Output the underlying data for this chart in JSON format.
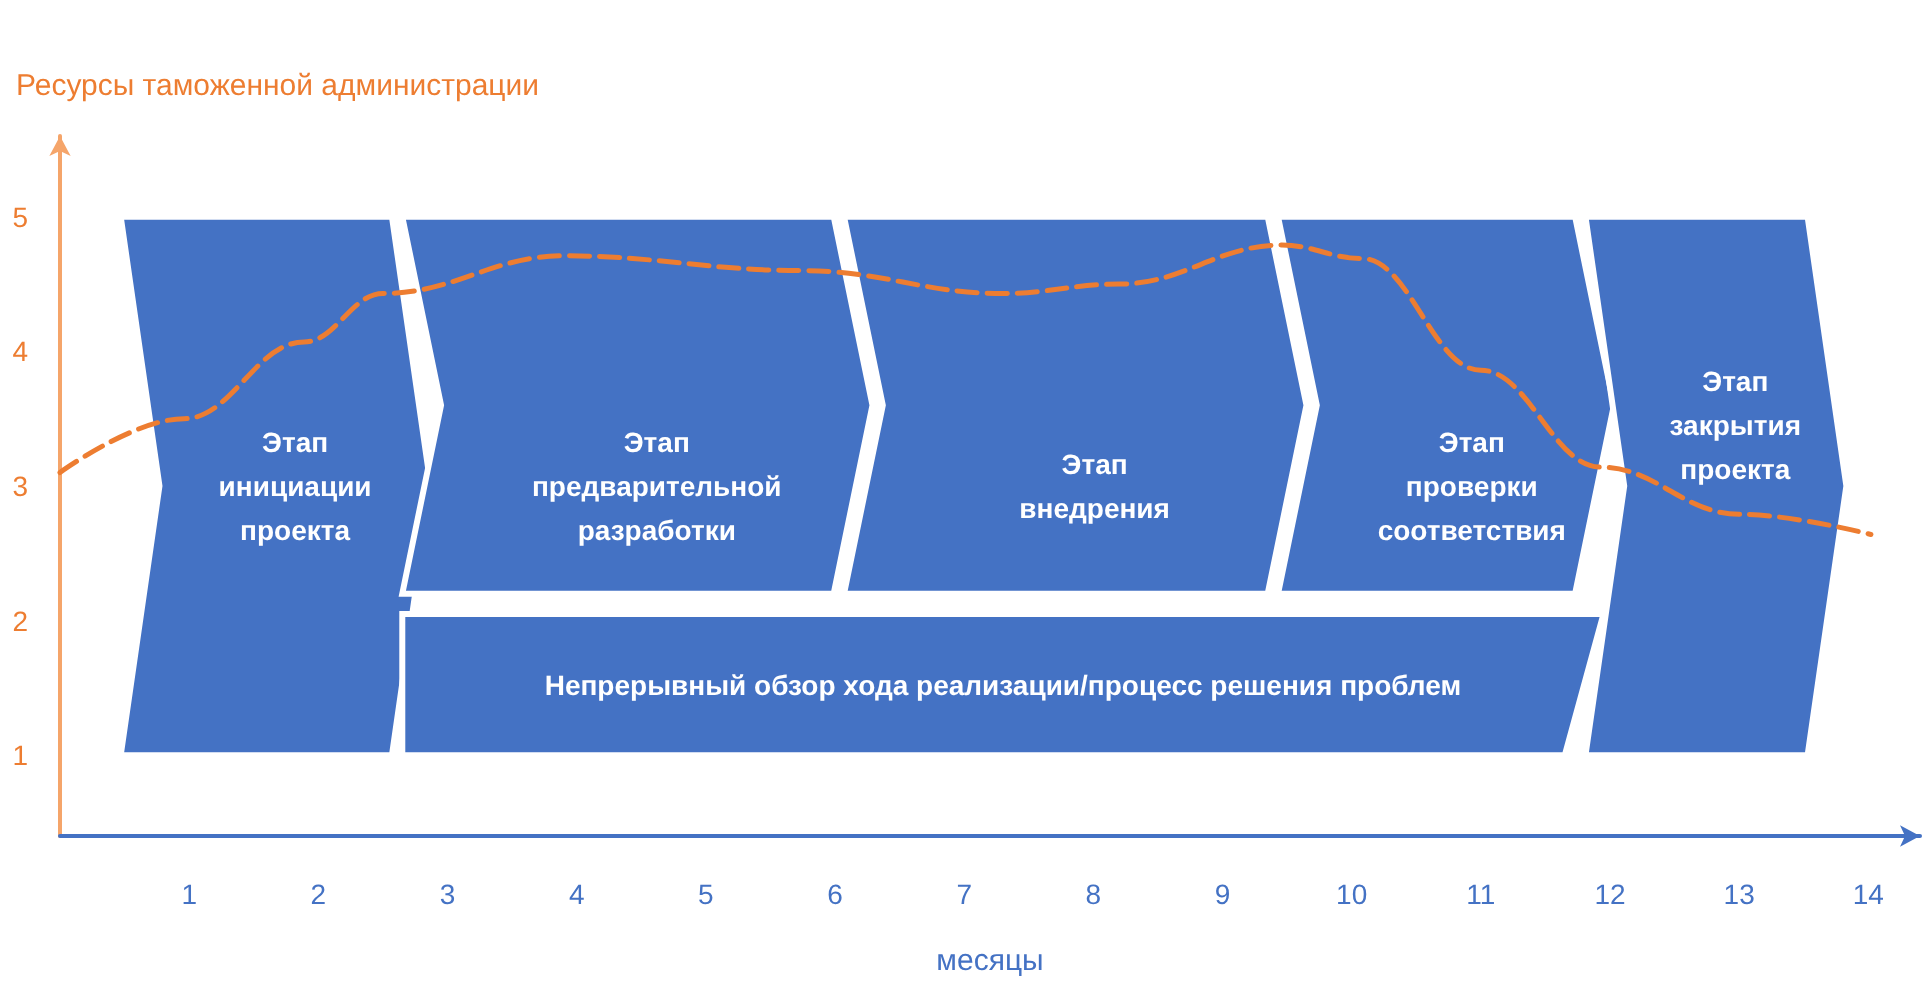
{
  "chart_data": {
    "type": "line",
    "xlabel": "месяцы",
    "ylabel": "Ресурсы таможенной администрации",
    "x": [
      0,
      0.96,
      1.89,
      2.5,
      3.9,
      5.75,
      7.3,
      8.2,
      9.46,
      10.08,
      11.0,
      11.93,
      13.0,
      14.02
    ],
    "series": [
      {
        "color": "#ed7d31",
        "values": [
          3.1,
          3.5,
          4.07,
          4.43,
          4.71,
          4.6,
          4.43,
          4.5,
          4.79,
          4.69,
          3.86,
          3.14,
          2.79,
          2.64
        ]
      }
    ],
    "line_style": "dashed",
    "marker": "none",
    "grid": false,
    "xlim": [
      0,
      14.4
    ],
    "xticks": [
      1,
      2,
      3,
      4,
      5,
      6,
      7,
      8,
      9,
      10,
      11,
      12,
      13,
      14
    ],
    "ylim": [
      0.4,
      5.6
    ],
    "yticks": [
      1,
      2,
      3,
      4,
      5
    ],
    "bands": [
      {
        "axis": "x",
        "from": 0.47,
        "to": 2.87,
        "label": "Этап\nинициации\nпроекта",
        "color": "#4472c4"
      },
      {
        "axis": "x",
        "from": 2.65,
        "to": 6.29,
        "label": "Этап\nпредварительной\nразработки",
        "color": "#4472c4"
      },
      {
        "axis": "x",
        "from": 6.07,
        "to": 9.65,
        "label": "Этап\nвнедрения",
        "color": "#4472c4"
      },
      {
        "axis": "x",
        "from": 9.43,
        "to": 12.03,
        "label": "Этап\nпроверки\nсоответствия",
        "color": "#4472c4"
      },
      {
        "axis": "x",
        "from": 11.81,
        "to": 13.83,
        "label": "Этап\nзакрытия\nпроекта",
        "color": "#4472c4"
      },
      {
        "axis": "x",
        "from": 2.65,
        "to": 11.95,
        "label": "Непрерывный обзор хода реализации/процесс решения проблем",
        "color": "#4472c4"
      }
    ]
  }
}
